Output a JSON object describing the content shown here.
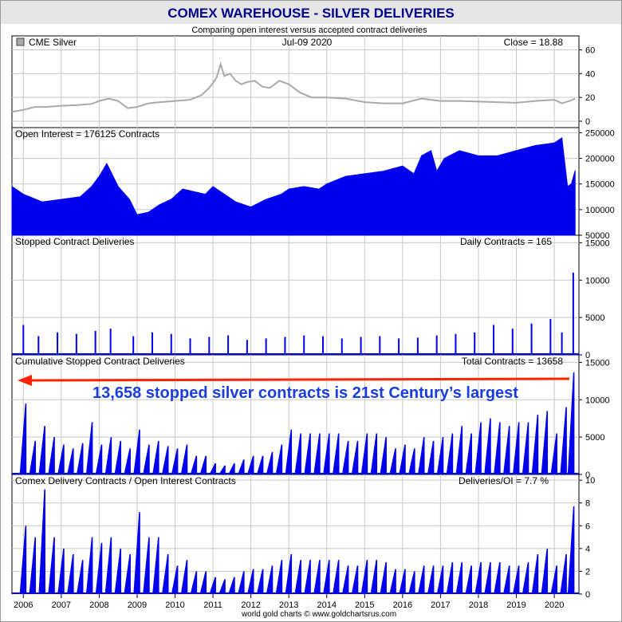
{
  "header": {
    "title": "COMEX WAREHOUSE - SILVER DELIVERIES",
    "subtitle": "Comparing open interest versus accepted contract deliveries"
  },
  "footer": {
    "credit": "world gold charts © www.goldchartsrus.com"
  },
  "annotation": {
    "text": "13,658 stopped silver contracts is 21st Century’s largest"
  },
  "colors": {
    "bars": "#0000ee",
    "price_line": "#a9a9a9",
    "arrow": "#ff2200",
    "annotation": "#1a3de0",
    "title": "#00008b",
    "grid": "#c8c8c8"
  },
  "chart_data": [
    {
      "id": "price",
      "type": "line",
      "legend": "CME Silver",
      "date_label": "Jul-09  2020",
      "value_label": "Close = 18.88",
      "x": [
        2005.7,
        2006.0,
        2006.3,
        2006.6,
        2007.0,
        2007.4,
        2007.8,
        2008.0,
        2008.25,
        2008.5,
        2008.75,
        2009.0,
        2009.3,
        2009.6,
        2010.0,
        2010.4,
        2010.7,
        2010.9,
        2011.0,
        2011.1,
        2011.2,
        2011.3,
        2011.45,
        2011.6,
        2011.75,
        2011.9,
        2012.1,
        2012.3,
        2012.5,
        2012.75,
        2013.0,
        2013.3,
        2013.6,
        2014.0,
        2014.5,
        2015.0,
        2015.5,
        2016.0,
        2016.5,
        2017.0,
        2017.5,
        2018.0,
        2018.5,
        2019.0,
        2019.5,
        2020.0,
        2020.2,
        2020.4,
        2020.55
      ],
      "y": [
        8,
        9.5,
        12,
        12,
        13,
        13.5,
        14.5,
        17,
        19,
        17,
        11,
        12,
        15,
        16,
        17,
        18,
        22,
        28,
        32,
        37,
        48,
        38,
        40,
        34,
        31,
        33,
        34,
        29,
        28,
        34,
        31,
        24,
        20,
        20,
        19,
        16,
        15,
        15,
        19,
        17,
        17,
        16.5,
        16,
        15.5,
        17,
        18,
        15,
        17,
        18.88
      ],
      "ylim": [
        0,
        65
      ],
      "yticks": [
        0,
        20,
        40,
        60
      ]
    },
    {
      "id": "open_interest",
      "type": "area",
      "label": "Open Interest = 176125 Contracts",
      "x": [
        2005.7,
        2006.0,
        2006.5,
        2007.0,
        2007.5,
        2007.8,
        2008.0,
        2008.2,
        2008.5,
        2008.8,
        2009.0,
        2009.3,
        2009.6,
        2009.9,
        2010.2,
        2010.5,
        2010.8,
        2011.0,
        2011.3,
        2011.6,
        2012.0,
        2012.4,
        2012.8,
        2013.0,
        2013.4,
        2013.8,
        2014.0,
        2014.5,
        2015.0,
        2015.5,
        2016.0,
        2016.3,
        2016.5,
        2016.75,
        2016.9,
        2017.1,
        2017.5,
        2018.0,
        2018.5,
        2019.0,
        2019.5,
        2020.0,
        2020.2,
        2020.35,
        2020.45,
        2020.55
      ],
      "y": [
        145000,
        130000,
        115000,
        120000,
        125000,
        145000,
        165000,
        190000,
        145000,
        120000,
        90000,
        95000,
        110000,
        120000,
        140000,
        135000,
        130000,
        145000,
        130000,
        115000,
        105000,
        120000,
        130000,
        140000,
        145000,
        140000,
        150000,
        165000,
        170000,
        175000,
        185000,
        170000,
        205000,
        215000,
        175000,
        200000,
        215000,
        205000,
        205000,
        215000,
        225000,
        230000,
        240000,
        145000,
        150000,
        176125
      ],
      "ylim": [
        50000,
        260000
      ],
      "yticks": [
        50000,
        100000,
        150000,
        200000,
        250000
      ],
      "ytick_labels": [
        "50000",
        "100000",
        "150000",
        "200000",
        "250000"
      ]
    },
    {
      "id": "daily_deliveries",
      "type": "bar",
      "label": "Stopped Contract Deliveries",
      "value_label": "Daily Contracts = 165",
      "x": [
        2006.0,
        2006.4,
        2006.9,
        2007.4,
        2007.9,
        2008.3,
        2008.9,
        2009.4,
        2009.9,
        2010.4,
        2010.9,
        2011.4,
        2011.9,
        2012.4,
        2012.9,
        2013.4,
        2013.9,
        2014.4,
        2014.9,
        2015.4,
        2015.9,
        2016.4,
        2016.9,
        2017.4,
        2017.9,
        2018.4,
        2018.9,
        2019.4,
        2019.9,
        2020.2,
        2020.5
      ],
      "y": [
        4000,
        2500,
        3000,
        2800,
        3200,
        3500,
        2500,
        3000,
        2800,
        2200,
        2400,
        2600,
        2000,
        2200,
        2400,
        2600,
        2500,
        2200,
        2400,
        2500,
        2200,
        2300,
        2600,
        2800,
        3000,
        4000,
        3500,
        4200,
        4800,
        3000,
        11000
      ],
      "ylim": [
        0,
        16000
      ],
      "yticks": [
        0,
        5000,
        10000,
        15000
      ]
    },
    {
      "id": "cumulative_deliveries",
      "type": "bar",
      "label": "Cumulative Stopped Contract Deliveries",
      "value_label": "Total Contracts = 13658",
      "x": [
        2006.05,
        2006.3,
        2006.55,
        2006.8,
        2007.05,
        2007.3,
        2007.55,
        2007.8,
        2008.05,
        2008.3,
        2008.55,
        2008.8,
        2009.05,
        2009.3,
        2009.55,
        2009.8,
        2010.05,
        2010.3,
        2010.55,
        2010.8,
        2011.05,
        2011.3,
        2011.55,
        2011.8,
        2012.05,
        2012.3,
        2012.55,
        2012.8,
        2013.05,
        2013.3,
        2013.55,
        2013.8,
        2014.05,
        2014.3,
        2014.55,
        2014.8,
        2015.05,
        2015.3,
        2015.55,
        2015.8,
        2016.05,
        2016.3,
        2016.55,
        2016.8,
        2017.05,
        2017.3,
        2017.55,
        2017.8,
        2018.05,
        2018.3,
        2018.55,
        2018.8,
        2019.05,
        2019.3,
        2019.55,
        2019.8,
        2020.05,
        2020.3,
        2020.5
      ],
      "y": [
        9500,
        4500,
        6500,
        5000,
        4000,
        3500,
        4200,
        7000,
        4000,
        5000,
        4500,
        3500,
        6000,
        4000,
        4500,
        3800,
        3500,
        4000,
        2500,
        2500,
        1500,
        1200,
        1500,
        2000,
        2500,
        2500,
        3000,
        4000,
        6000,
        5500,
        5500,
        5500,
        5500,
        5500,
        4500,
        4500,
        5500,
        5500,
        5000,
        3500,
        4000,
        3500,
        5000,
        4500,
        5000,
        5500,
        6500,
        5500,
        7000,
        7500,
        7000,
        6500,
        7000,
        7000,
        8000,
        8500,
        5500,
        9000,
        13658
      ],
      "ylim": [
        0,
        16000
      ],
      "yticks": [
        0,
        5000,
        10000,
        15000
      ]
    },
    {
      "id": "delivery_ratio",
      "type": "bar",
      "label": "Comex Delivery Contracts / Open Interest Contracts",
      "value_label": "Deliveries/OI = 7.7 %",
      "x": [
        2006.05,
        2006.3,
        2006.55,
        2006.8,
        2007.05,
        2007.3,
        2007.55,
        2007.8,
        2008.05,
        2008.3,
        2008.55,
        2008.8,
        2009.05,
        2009.3,
        2009.55,
        2009.8,
        2010.05,
        2010.3,
        2010.55,
        2010.8,
        2011.05,
        2011.3,
        2011.55,
        2011.8,
        2012.05,
        2012.3,
        2012.55,
        2012.8,
        2013.05,
        2013.3,
        2013.55,
        2013.8,
        2014.05,
        2014.3,
        2014.55,
        2014.8,
        2015.05,
        2015.3,
        2015.55,
        2015.8,
        2016.05,
        2016.3,
        2016.55,
        2016.8,
        2017.05,
        2017.3,
        2017.55,
        2017.8,
        2018.05,
        2018.3,
        2018.55,
        2018.8,
        2019.05,
        2019.3,
        2019.55,
        2019.8,
        2020.05,
        2020.3,
        2020.5
      ],
      "y": [
        6,
        5,
        9.2,
        5,
        4,
        3.5,
        3,
        5,
        4.5,
        5,
        4,
        3.5,
        7.2,
        5,
        5,
        3.5,
        2.5,
        3,
        2,
        2,
        1.5,
        1.3,
        1.5,
        2,
        2.2,
        2.2,
        2.5,
        3,
        3.5,
        3,
        3,
        3,
        3,
        3,
        2.5,
        2.5,
        3,
        3,
        2.8,
        2.2,
        2.2,
        2,
        2.5,
        2.5,
        2.5,
        2.8,
        2.8,
        2.5,
        2.8,
        2.8,
        2.8,
        2.5,
        2.5,
        2.8,
        3.5,
        4,
        2.5,
        3.5,
        7.7
      ],
      "ylim": [
        0,
        10.5
      ],
      "yticks": [
        0,
        2,
        4,
        6,
        8,
        10
      ]
    }
  ],
  "x_axis": {
    "range": [
      2005.7,
      2020.65
    ],
    "ticks": [
      2006,
      2007,
      2008,
      2009,
      2010,
      2011,
      2012,
      2013,
      2014,
      2015,
      2016,
      2017,
      2018,
      2019,
      2020
    ],
    "tick_labels": [
      "2006",
      "2007",
      "2008",
      "2009",
      "2010",
      "2011",
      "2012",
      "2013",
      "2014",
      "2015",
      "2016",
      "2017",
      "2018",
      "2019",
      "2020"
    ]
  }
}
